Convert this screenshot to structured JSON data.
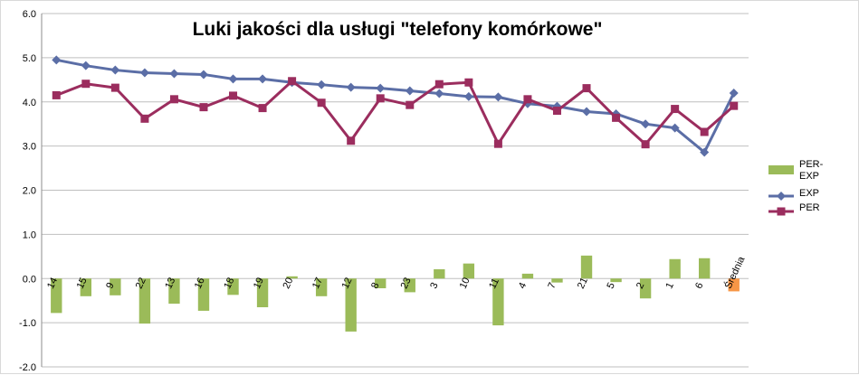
{
  "chart_data": {
    "type": "bar+line",
    "title": "Luki jakości dla usługi \"telefony komórkowe\"",
    "categories": [
      "14",
      "15",
      "9",
      "22",
      "13",
      "16",
      "18",
      "19",
      "20",
      "17",
      "12",
      "8",
      "23",
      "3",
      "10",
      "11",
      "4",
      "7",
      "21",
      "5",
      "2",
      "1",
      "6",
      "Średnia"
    ],
    "ylim": [
      -2.0,
      6.0
    ],
    "yticks": [
      "-2.0",
      "-1.0",
      "0.0",
      "1.0",
      "2.0",
      "3.0",
      "4.0",
      "5.0",
      "6.0"
    ],
    "grid": true,
    "legend_position": "right",
    "series": [
      {
        "name": "PER-EXP",
        "type": "bar",
        "color": "#9bbb59",
        "highlight_color": "#f79646",
        "values": [
          -0.78,
          -0.4,
          -0.38,
          -1.02,
          -0.57,
          -0.73,
          -0.37,
          -0.65,
          0.05,
          -0.4,
          -1.2,
          -0.22,
          -0.31,
          0.21,
          0.34,
          -1.06,
          0.11,
          -0.09,
          0.52,
          -0.08,
          -0.45,
          0.44,
          0.46,
          -0.29
        ]
      },
      {
        "name": "EXP",
        "type": "line",
        "color": "#5b6ea6",
        "marker": "diamond",
        "values": [
          4.95,
          4.82,
          4.72,
          4.66,
          4.64,
          4.62,
          4.52,
          4.52,
          4.44,
          4.39,
          4.33,
          4.31,
          4.25,
          4.19,
          4.12,
          4.11,
          3.96,
          3.9,
          3.78,
          3.73,
          3.5,
          3.41,
          2.86,
          4.2
        ]
      },
      {
        "name": "PER",
        "type": "line",
        "color": "#9b2d5e",
        "marker": "square",
        "values": [
          4.15,
          4.41,
          4.32,
          3.62,
          4.06,
          3.88,
          4.14,
          3.86,
          4.47,
          3.98,
          3.12,
          4.08,
          3.93,
          4.4,
          4.44,
          3.05,
          4.06,
          3.8,
          4.31,
          3.64,
          3.04,
          3.84,
          3.32,
          3.91
        ]
      }
    ]
  }
}
